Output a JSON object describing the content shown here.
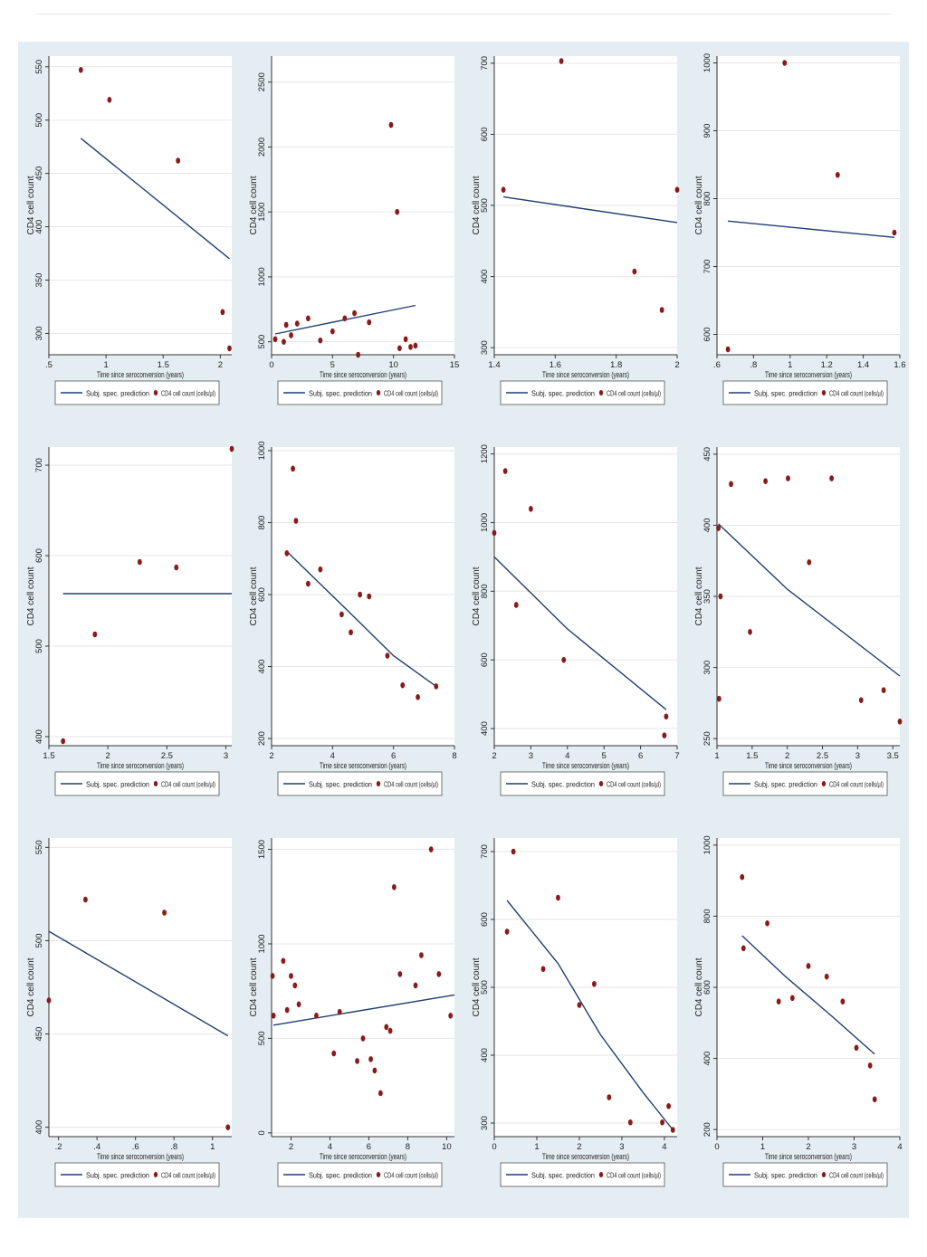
{
  "colors": {
    "background": "#e4edf1",
    "plot_bg": "#ffffff",
    "line": "#1f3f73",
    "marker": "#8b1a1a",
    "grid": "#e6e6e6"
  },
  "legend": {
    "line_label": "Subj. spec. prediction",
    "marker_label": "CD4 cell count (cells/µl)"
  },
  "chart_data": [
    {
      "type": "scatter",
      "xlabel": "Time since seroconversion (years)",
      "ylabel": "CD4 cell count",
      "xlim": [
        0.5,
        2.1
      ],
      "ylim": [
        280,
        560
      ],
      "x_ticks": [
        0.5,
        1,
        1.5,
        2
      ],
      "x_tick_labels": [
        ".5",
        "1",
        "1.5",
        "2"
      ],
      "y_ticks": [
        300,
        350,
        400,
        450,
        500,
        550
      ],
      "y_tick_labels": [
        "300",
        "350",
        "400",
        "450",
        "500",
        "550"
      ],
      "points": [
        [
          0.78,
          547
        ],
        [
          1.03,
          519
        ],
        [
          1.63,
          462
        ],
        [
          2.02,
          320
        ],
        [
          2.08,
          286
        ]
      ],
      "line": [
        [
          0.78,
          483
        ],
        [
          2.08,
          370
        ]
      ]
    },
    {
      "type": "scatter",
      "xlabel": "Time since seroconversion (years)",
      "ylabel": "CD4 cell count",
      "xlim": [
        0,
        15
      ],
      "ylim": [
        400,
        2700
      ],
      "x_ticks": [
        0,
        5,
        10,
        15
      ],
      "x_tick_labels": [
        "0",
        "5",
        "10",
        "15"
      ],
      "y_ticks": [
        500,
        1000,
        1500,
        2000,
        2500
      ],
      "y_tick_labels": [
        "500",
        "1000",
        "1500",
        "2000",
        "2500"
      ],
      "points": [
        [
          0.3,
          520
        ],
        [
          1.0,
          500
        ],
        [
          1.2,
          630
        ],
        [
          1.6,
          550
        ],
        [
          2.1,
          640
        ],
        [
          3.0,
          680
        ],
        [
          4.0,
          510
        ],
        [
          5.0,
          580
        ],
        [
          6.0,
          680
        ],
        [
          6.8,
          720
        ],
        [
          7.1,
          400
        ],
        [
          8.0,
          650
        ],
        [
          9.8,
          2170
        ],
        [
          10.3,
          1500
        ],
        [
          10.5,
          450
        ],
        [
          11.0,
          520
        ],
        [
          11.4,
          460
        ],
        [
          11.8,
          470
        ]
      ],
      "line": [
        [
          0.3,
          560
        ],
        [
          11.8,
          780
        ]
      ]
    },
    {
      "type": "scatter",
      "xlabel": "Time since seroconversion (years)",
      "ylabel": "CD4 cell count",
      "xlim": [
        1.4,
        2.0
      ],
      "ylim": [
        290,
        710
      ],
      "x_ticks": [
        1.4,
        1.6,
        1.8,
        2.0
      ],
      "x_tick_labels": [
        "1.4",
        "1.6",
        "1.8",
        "2"
      ],
      "y_ticks": [
        300,
        400,
        500,
        600,
        700
      ],
      "y_tick_labels": [
        "300",
        "400",
        "500",
        "600",
        "700"
      ],
      "points": [
        [
          1.43,
          522
        ],
        [
          1.62,
          703
        ],
        [
          1.86,
          407
        ],
        [
          1.95,
          353
        ],
        [
          2.0,
          522
        ]
      ],
      "line": [
        [
          1.43,
          512
        ],
        [
          2.0,
          476
        ]
      ]
    },
    {
      "type": "scatter",
      "xlabel": "Time since seroconversion (years)",
      "ylabel": "CD4 cell count",
      "xlim": [
        0.6,
        1.6
      ],
      "ylim": [
        570,
        1010
      ],
      "x_ticks": [
        0.6,
        0.8,
        1.0,
        1.2,
        1.4,
        1.6
      ],
      "x_tick_labels": [
        ".6",
        ".8",
        "1",
        "1.2",
        "1.4",
        "1.6"
      ],
      "y_ticks": [
        600,
        700,
        800,
        900,
        1000
      ],
      "y_tick_labels": [
        "600",
        "700",
        "800",
        "900",
        "1000"
      ],
      "points": [
        [
          0.66,
          578
        ],
        [
          0.97,
          1000
        ],
        [
          1.26,
          835
        ],
        [
          1.57,
          750
        ]
      ],
      "line": [
        [
          0.66,
          767
        ],
        [
          1.57,
          743
        ]
      ]
    },
    {
      "type": "scatter",
      "xlabel": "Time since seroconversion (years)",
      "ylabel": "CD4 cell count",
      "xlim": [
        1.5,
        3.05
      ],
      "ylim": [
        390,
        720
      ],
      "x_ticks": [
        1.5,
        2,
        2.5,
        3
      ],
      "x_tick_labels": [
        "1.5",
        "2",
        "2.5",
        "3"
      ],
      "y_ticks": [
        400,
        500,
        600,
        700
      ],
      "y_tick_labels": [
        "400",
        "500",
        "600",
        "700"
      ],
      "points": [
        [
          1.62,
          395
        ],
        [
          1.89,
          513
        ],
        [
          2.27,
          593
        ],
        [
          2.58,
          587
        ],
        [
          3.05,
          718
        ]
      ],
      "line": [
        [
          1.62,
          558
        ],
        [
          3.05,
          558
        ]
      ]
    },
    {
      "type": "scatter",
      "xlabel": "Time since seroconversion (years)",
      "ylabel": "CD4 cell count",
      "xlim": [
        2,
        8
      ],
      "ylim": [
        180,
        1010
      ],
      "x_ticks": [
        2,
        4,
        6,
        8
      ],
      "x_tick_labels": [
        "2",
        "4",
        "6",
        "8"
      ],
      "y_ticks": [
        200,
        400,
        600,
        800,
        1000
      ],
      "y_tick_labels": [
        "200",
        "400",
        "600",
        "800",
        "1000"
      ],
      "points": [
        [
          2.5,
          715
        ],
        [
          2.7,
          950
        ],
        [
          2.8,
          805
        ],
        [
          3.2,
          630
        ],
        [
          3.6,
          670
        ],
        [
          4.3,
          545
        ],
        [
          4.6,
          495
        ],
        [
          4.9,
          600
        ],
        [
          5.2,
          595
        ],
        [
          5.8,
          430
        ],
        [
          6.3,
          348
        ],
        [
          6.8,
          315
        ],
        [
          7.4,
          345
        ]
      ],
      "line": [
        [
          2.5,
          720
        ],
        [
          4.5,
          555
        ],
        [
          6.0,
          430
        ],
        [
          7.4,
          345
        ]
      ]
    },
    {
      "type": "scatter",
      "xlabel": "Time since seroconversion (years)",
      "ylabel": "CD4 cell count",
      "xlim": [
        2,
        7
      ],
      "ylim": [
        350,
        1220
      ],
      "x_ticks": [
        2,
        3,
        4,
        5,
        6,
        7
      ],
      "x_tick_labels": [
        "2",
        "3",
        "4",
        "5",
        "6",
        "7"
      ],
      "y_ticks": [
        400,
        600,
        800,
        1000,
        1200
      ],
      "y_tick_labels": [
        "400",
        "600",
        "800",
        "1000",
        "1200"
      ],
      "points": [
        [
          2.0,
          970
        ],
        [
          2.3,
          1150
        ],
        [
          2.6,
          760
        ],
        [
          3.0,
          1040
        ],
        [
          3.9,
          600
        ],
        [
          6.65,
          380
        ],
        [
          6.7,
          435
        ]
      ],
      "line": [
        [
          2.0,
          900
        ],
        [
          4.0,
          690
        ],
        [
          6.7,
          455
        ]
      ]
    },
    {
      "type": "scatter",
      "xlabel": "Time since seroconversion (years)",
      "ylabel": "CD4 cell count",
      "xlim": [
        1,
        3.6
      ],
      "ylim": [
        245,
        455
      ],
      "x_ticks": [
        1,
        1.5,
        2,
        2.5,
        3,
        3.5
      ],
      "x_tick_labels": [
        "1",
        "1.5",
        "2",
        "2.5",
        "3",
        "3.5"
      ],
      "y_ticks": [
        250,
        300,
        350,
        400,
        450
      ],
      "y_tick_labels": [
        "250",
        "300",
        "350",
        "400",
        "450"
      ],
      "points": [
        [
          1.02,
          398
        ],
        [
          1.03,
          278
        ],
        [
          1.05,
          350
        ],
        [
          1.2,
          429
        ],
        [
          1.47,
          325
        ],
        [
          1.69,
          431
        ],
        [
          2.01,
          433
        ],
        [
          2.31,
          374
        ],
        [
          2.63,
          433
        ],
        [
          3.05,
          277
        ],
        [
          3.37,
          284
        ],
        [
          3.6,
          262
        ]
      ],
      "line": [
        [
          1.02,
          401
        ],
        [
          2.0,
          355
        ],
        [
          3.6,
          294
        ]
      ]
    },
    {
      "type": "scatter",
      "xlabel": "Time since seroconversion (years)",
      "ylabel": "CD4 cell count",
      "xlim": [
        0.15,
        1.1
      ],
      "ylim": [
        395,
        555
      ],
      "x_ticks": [
        0.2,
        0.4,
        0.6,
        0.8,
        1.0
      ],
      "x_tick_labels": [
        ".2",
        ".4",
        ".6",
        ".8",
        "1"
      ],
      "y_ticks": [
        400,
        450,
        500,
        550
      ],
      "y_tick_labels": [
        "400",
        "450",
        "500",
        "550"
      ],
      "points": [
        [
          0.15,
          468
        ],
        [
          0.34,
          522
        ],
        [
          0.75,
          515
        ],
        [
          1.08,
          400
        ]
      ],
      "line": [
        [
          0.15,
          505
        ],
        [
          1.08,
          449
        ]
      ]
    },
    {
      "type": "scatter",
      "xlabel": "Time since seroconversion (years)",
      "ylabel": "CD4 cell count",
      "xlim": [
        1,
        10.4
      ],
      "ylim": [
        -20,
        1560
      ],
      "x_ticks": [
        2,
        4,
        6,
        8,
        10
      ],
      "x_tick_labels": [
        "2",
        "4",
        "6",
        "8",
        "10"
      ],
      "y_ticks": [
        0,
        500,
        1000,
        1500
      ],
      "y_tick_labels": [
        "0",
        "500",
        "1000",
        "1500"
      ],
      "points": [
        [
          1.05,
          830
        ],
        [
          1.1,
          620
        ],
        [
          1.6,
          910
        ],
        [
          1.8,
          650
        ],
        [
          2.0,
          830
        ],
        [
          2.2,
          780
        ],
        [
          2.4,
          680
        ],
        [
          3.3,
          620
        ],
        [
          4.2,
          420
        ],
        [
          4.5,
          640
        ],
        [
          5.4,
          380
        ],
        [
          5.7,
          500
        ],
        [
          6.1,
          390
        ],
        [
          6.3,
          330
        ],
        [
          6.6,
          210
        ],
        [
          6.9,
          560
        ],
        [
          7.1,
          540
        ],
        [
          7.3,
          1300
        ],
        [
          7.6,
          840
        ],
        [
          8.4,
          780
        ],
        [
          8.7,
          940
        ],
        [
          9.2,
          1500
        ],
        [
          9.6,
          840
        ],
        [
          10.2,
          620
        ]
      ],
      "line": [
        [
          1.1,
          570
        ],
        [
          10.4,
          730
        ]
      ]
    },
    {
      "type": "scatter",
      "xlabel": "Time since seroconversion (years)",
      "ylabel": "CD4 cell count",
      "xlim": [
        0,
        4.3
      ],
      "ylim": [
        280,
        720
      ],
      "x_ticks": [
        0,
        1,
        2,
        3,
        4
      ],
      "x_tick_labels": [
        "0",
        "1",
        "2",
        "3",
        "4"
      ],
      "y_ticks": [
        300,
        400,
        500,
        600,
        700
      ],
      "y_tick_labels": [
        "300",
        "400",
        "500",
        "600",
        "700"
      ],
      "points": [
        [
          0.3,
          582
        ],
        [
          0.45,
          700
        ],
        [
          1.15,
          527
        ],
        [
          1.5,
          632
        ],
        [
          2.0,
          474
        ],
        [
          2.35,
          505
        ],
        [
          2.7,
          338
        ],
        [
          3.2,
          301
        ],
        [
          3.95,
          301
        ],
        [
          4.1,
          325
        ],
        [
          4.2,
          290
        ]
      ],
      "line": [
        [
          0.3,
          628
        ],
        [
          1.5,
          535
        ],
        [
          2.5,
          430
        ],
        [
          3.5,
          345
        ],
        [
          4.2,
          290
        ]
      ]
    },
    {
      "type": "scatter",
      "xlabel": "Time since seroconversion (years)",
      "ylabel": "CD4 cell count",
      "xlim": [
        0,
        4
      ],
      "ylim": [
        180,
        1020
      ],
      "x_ticks": [
        0,
        1,
        2,
        3,
        4
      ],
      "x_tick_labels": [
        "0",
        "1",
        "2",
        "3",
        "4"
      ],
      "y_ticks": [
        200,
        400,
        600,
        800,
        1000
      ],
      "y_tick_labels": [
        "200",
        "400",
        "600",
        "800",
        "1000"
      ],
      "points": [
        [
          0.55,
          910
        ],
        [
          0.58,
          710
        ],
        [
          1.1,
          780
        ],
        [
          1.35,
          560
        ],
        [
          1.65,
          570
        ],
        [
          2.0,
          660
        ],
        [
          2.4,
          630
        ],
        [
          2.75,
          560
        ],
        [
          3.05,
          430
        ],
        [
          3.35,
          380
        ],
        [
          3.45,
          285
        ]
      ],
      "line": [
        [
          0.55,
          745
        ],
        [
          1.5,
          630
        ],
        [
          2.5,
          520
        ],
        [
          3.45,
          412
        ]
      ]
    }
  ]
}
